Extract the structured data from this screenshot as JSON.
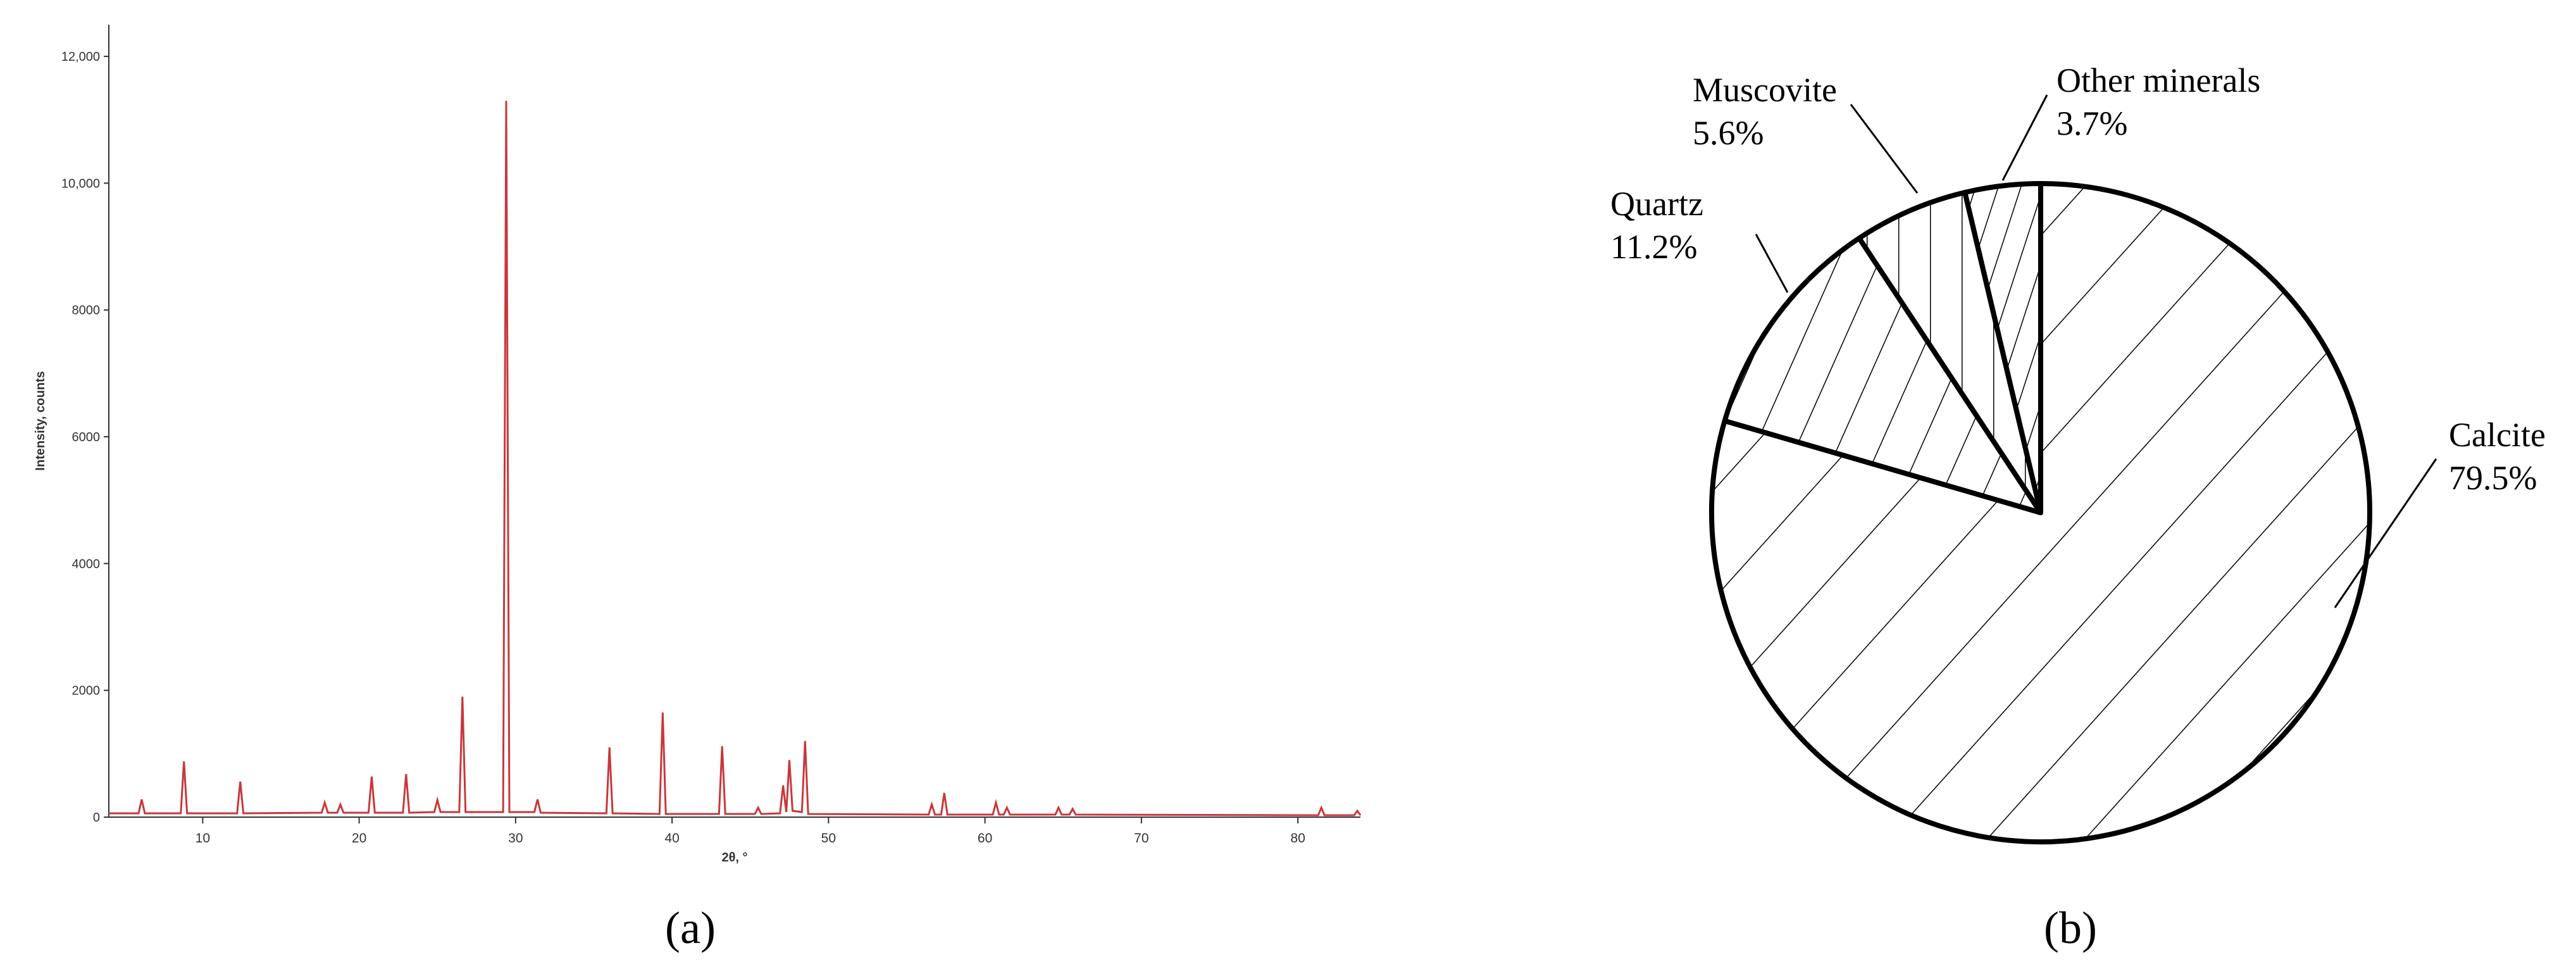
{
  "chart_data": [
    {
      "type": "line",
      "caption": "(a)",
      "xlabel": "2θ, °",
      "ylabel": "Intensity, counts",
      "xlim": [
        4,
        84
      ],
      "xticks": [
        10,
        20,
        30,
        40,
        50,
        60,
        70,
        80
      ],
      "ylim": [
        0,
        12500
      ],
      "yticks": [
        0,
        2000,
        4000,
        6000,
        8000,
        {
          "value": 10000,
          "label": "10,000"
        },
        {
          "value": 12000,
          "label": "12,000"
        }
      ],
      "x": [
        4,
        5.9,
        6.1,
        6.3,
        8.6,
        8.8,
        9.0,
        12.2,
        12.4,
        12.6,
        17.6,
        17.8,
        18.0,
        18.6,
        18.8,
        19.0,
        20.6,
        20.8,
        21.0,
        22.8,
        23.0,
        23.2,
        24.8,
        25.0,
        25.2,
        26.4,
        26.6,
        26.8,
        29.2,
        29.4,
        29.6,
        31.2,
        31.4,
        31.6,
        35.8,
        36.0,
        36.2,
        39.2,
        39.4,
        39.6,
        43.0,
        43.2,
        43.4,
        45.3,
        45.5,
        45.7,
        46.9,
        47.1,
        47.3,
        47.5,
        47.7,
        48.3,
        48.5,
        48.7,
        56.4,
        56.6,
        56.8,
        57.2,
        57.4,
        57.6,
        60.5,
        60.7,
        60.9,
        61.2,
        61.4,
        61.6,
        64.5,
        64.7,
        64.9,
        65.4,
        65.6,
        65.8,
        81.3,
        81.5,
        81.7,
        83.6,
        83.8,
        84
      ],
      "series": [
        {
          "color": "#c8373c",
          "values": [
            60,
            60,
            280,
            60,
            60,
            880,
            60,
            60,
            560,
            60,
            70,
            230,
            70,
            70,
            200,
            70,
            70,
            640,
            70,
            70,
            680,
            70,
            80,
            270,
            80,
            80,
            1900,
            80,
            80,
            11300,
            80,
            80,
            280,
            70,
            60,
            1100,
            60,
            50,
            1650,
            50,
            50,
            1120,
            50,
            50,
            150,
            50,
            60,
            500,
            80,
            900,
            100,
            80,
            1200,
            50,
            40,
            200,
            40,
            40,
            380,
            40,
            40,
            230,
            40,
            40,
            150,
            40,
            40,
            150,
            40,
            40,
            130,
            40,
            30,
            150,
            30,
            30,
            100,
            30
          ]
        }
      ]
    },
    {
      "type": "pie",
      "caption": "(b)",
      "categories": [
        "Calcite",
        "Quartz",
        "Muscovite",
        "Other minerals"
      ],
      "values": [
        79.5,
        11.2,
        5.6,
        3.7
      ],
      "value_labels": [
        "79.5%",
        "11.2%",
        "5.6%",
        "3.7%"
      ]
    }
  ]
}
